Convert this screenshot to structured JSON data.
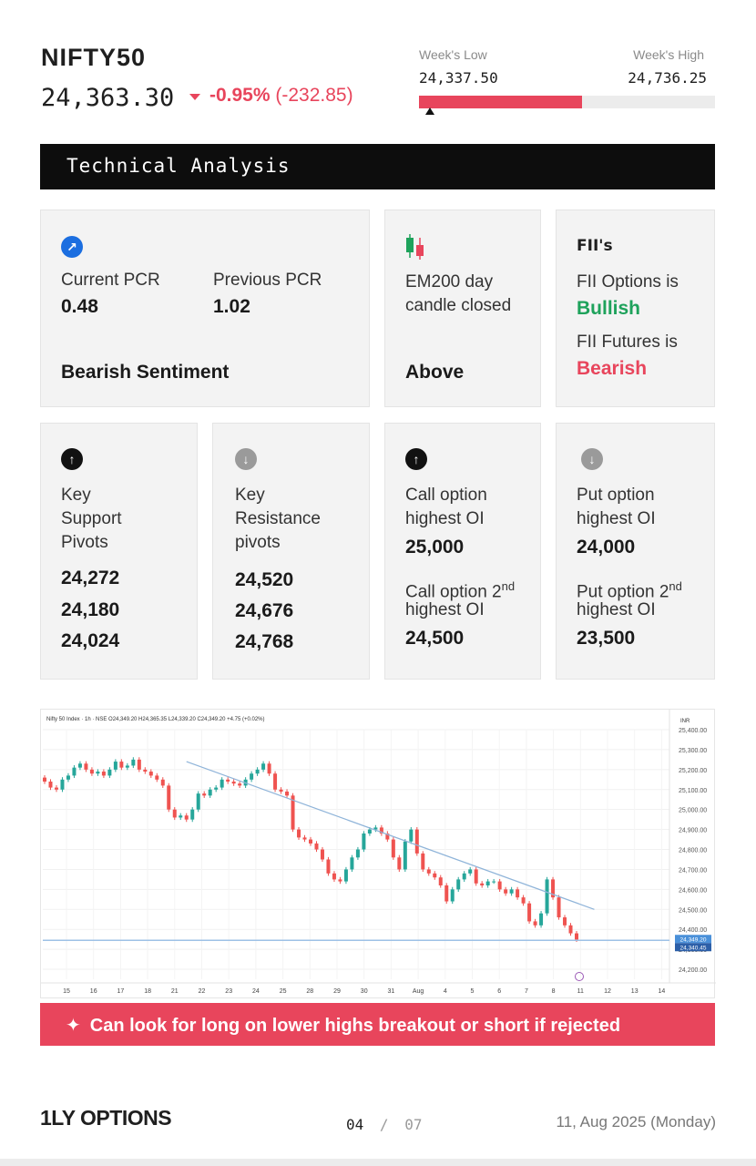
{
  "header": {
    "ticker": "NIFTY50",
    "price": "24,363.30",
    "change_pct": "-0.95%",
    "change_abs": "(-232.85)",
    "week_low_label": "Week's Low",
    "week_low_value": "24,337.50",
    "week_high_label": "Week's High",
    "week_high_value": "24,736.25",
    "range_fill_fraction": 0.55,
    "colors": {
      "negative": "#e8455c",
      "positive": "#1ea25b"
    }
  },
  "section_title": "Technical Analysis",
  "pcr_card": {
    "icon": "arrow-up-right-icon",
    "current_label": "Current PCR",
    "current_value": "0.48",
    "previous_label": "Previous PCR",
    "previous_value": "1.02",
    "sentiment": "Bearish Sentiment"
  },
  "em_card": {
    "icon": "candlestick-icon",
    "label_line1": "EM200 day",
    "label_line2": "candle closed",
    "value": "Above"
  },
  "fii_card": {
    "title": "FII's",
    "options_label": "FII Options is",
    "options_value": "Bullish",
    "futures_label": "FII Futures is",
    "futures_value": "Bearish"
  },
  "support_card": {
    "icon": "arrow-up-icon",
    "label": [
      "Key",
      "Support",
      "Pivots"
    ],
    "values": [
      "24,272",
      "24,180",
      "24,024"
    ]
  },
  "resistance_card": {
    "icon": "arrow-down-icon",
    "label": [
      "Key",
      "Resistance",
      "pivots"
    ],
    "values": [
      "24,520",
      "24,676",
      "24,768"
    ]
  },
  "call_card": {
    "icon": "arrow-up-icon",
    "label1": [
      "Call option",
      "highest OI"
    ],
    "value1": "25,000",
    "label2_a": "Call option 2",
    "label2_sup": "nd",
    "label2_b": "highest OI",
    "value2": "24,500"
  },
  "put_card": {
    "icon": "arrow-down-icon",
    "label1": [
      "Put option",
      "highest OI"
    ],
    "value1": "24,000",
    "label2_a": "Put option 2",
    "label2_sup": "nd",
    "label2_b": "highest OI",
    "value2": "23,500"
  },
  "chart_data": {
    "type": "candlestick",
    "header_text": "Nifty 50 Index · 1h · NSE",
    "ohlc_text": {
      "o": "24,349.20",
      "h": "24,365.35",
      "l": "24,339.20",
      "c": "24,349.20",
      "chg": "+4.75 (+0.02%)"
    },
    "currency": "INR",
    "y_ticks": [
      "25,400.00",
      "25,300.00",
      "25,200.00",
      "25,100.00",
      "25,000.00",
      "24,900.00",
      "24,800.00",
      "24,700.00",
      "24,600.00",
      "24,500.00",
      "24,400.00",
      "24,300.00",
      "24,200.00"
    ],
    "ylim": [
      24150,
      25400
    ],
    "x_ticks": [
      "15",
      "16",
      "17",
      "18",
      "21",
      "22",
      "23",
      "24",
      "25",
      "28",
      "29",
      "30",
      "31",
      "Aug",
      "4",
      "5",
      "6",
      "7",
      "8",
      "11",
      "12",
      "13",
      "14"
    ],
    "price_tags": [
      "24,349.20",
      "24,340.45"
    ],
    "horizontal_level": 24345,
    "trendline": [
      [
        24,
        25240
      ],
      [
        93,
        24500
      ]
    ],
    "closes": [
      25140,
      25110,
      25100,
      25150,
      25170,
      25210,
      25230,
      25200,
      25180,
      25190,
      25170,
      25200,
      25240,
      25210,
      25220,
      25250,
      25200,
      25190,
      25170,
      25150,
      25120,
      25000,
      24960,
      24970,
      24950,
      25000,
      25080,
      25070,
      25100,
      25110,
      25150,
      25140,
      25130,
      25120,
      25150,
      25180,
      25200,
      25230,
      25180,
      25100,
      25090,
      25070,
      24900,
      24860,
      24850,
      24830,
      24800,
      24750,
      24680,
      24650,
      24640,
      24700,
      24760,
      24800,
      24880,
      24900,
      24910,
      24880,
      24850,
      24760,
      24700,
      24840,
      24900,
      24780,
      24700,
      24680,
      24660,
      24620,
      24540,
      24600,
      24650,
      24680,
      24700,
      24630,
      24620,
      24640,
      24640,
      24600,
      24580,
      24600,
      24560,
      24530,
      24440,
      24420,
      24480,
      24650,
      24560,
      24460,
      24420,
      24380,
      24349
    ],
    "grid": true
  },
  "banner": {
    "icon": "sparkle-icon",
    "text": "Can look for long on lower highs breakout or short if rejected"
  },
  "footer": {
    "logo": "1LY OPTIONS",
    "page": "04",
    "separator": "/",
    "total": "07",
    "date": "11, Aug 2025 (Monday)"
  }
}
